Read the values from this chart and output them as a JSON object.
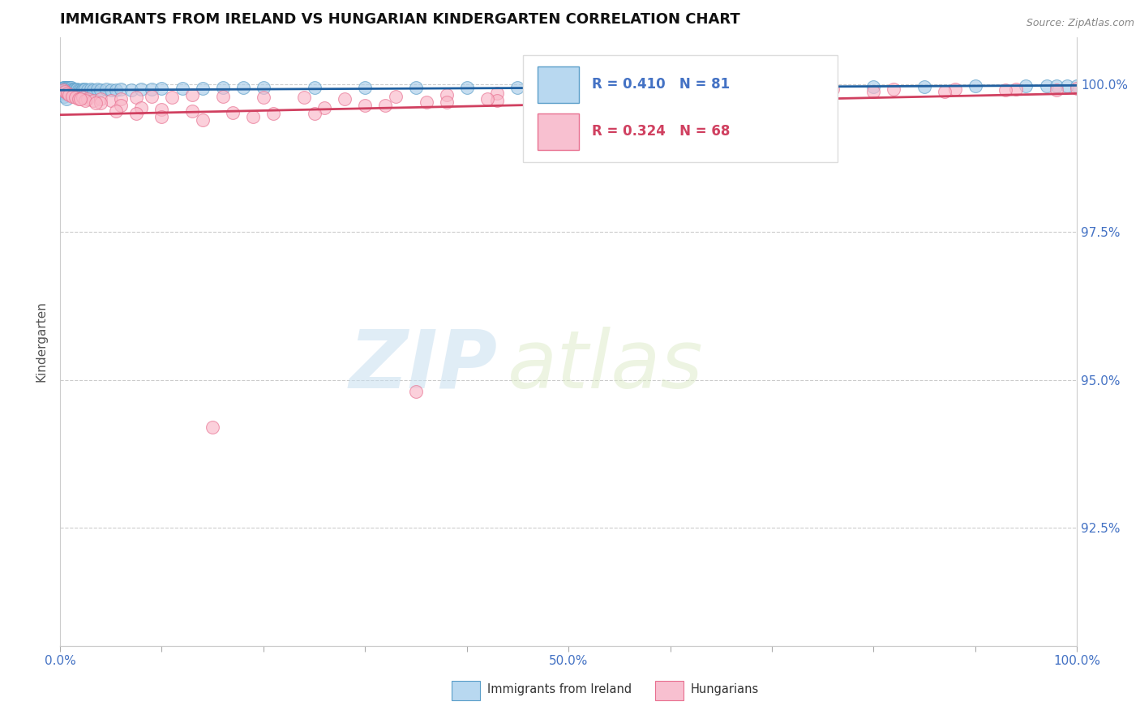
{
  "title": "IMMIGRANTS FROM IRELAND VS HUNGARIAN KINDERGARTEN CORRELATION CHART",
  "source_text": "Source: ZipAtlas.com",
  "ylabel": "Kindergarten",
  "xlim": [
    0.0,
    1.0
  ],
  "ylim": [
    0.905,
    1.008
  ],
  "right_yticks": [
    1.0,
    0.975,
    0.95,
    0.925
  ],
  "right_yticklabels": [
    "100.0%",
    "97.5%",
    "95.0%",
    "92.5%"
  ],
  "series1_name": "Immigrants from Ireland",
  "series1_color": "#a8cce8",
  "series1_edge_color": "#5a9ec9",
  "series1_R": 0.41,
  "series1_N": 81,
  "series2_name": "Hungarians",
  "series2_color": "#f9b8c8",
  "series2_edge_color": "#e87090",
  "series2_R": 0.324,
  "series2_N": 68,
  "trendline1_color": "#2060a0",
  "trendline2_color": "#d04060",
  "watermark_zip": "ZIP",
  "watermark_atlas": "atlas",
  "grid_color": "#cccccc",
  "title_color": "#111111",
  "axis_label_color": "#4472c4",
  "legend_box_color1": "#b8d8f0",
  "legend_box_color2": "#f8c0d0",
  "legend_R1_color": "#4472c4",
  "legend_R2_color": "#d04060",
  "bottom_legend_color": "#333333",
  "source_color": "#888888",
  "ylabel_color": "#555555",
  "series1_x": [
    0.002,
    0.003,
    0.003,
    0.004,
    0.004,
    0.005,
    0.005,
    0.005,
    0.006,
    0.006,
    0.006,
    0.007,
    0.007,
    0.007,
    0.007,
    0.008,
    0.008,
    0.008,
    0.009,
    0.009,
    0.009,
    0.01,
    0.01,
    0.01,
    0.01,
    0.011,
    0.011,
    0.012,
    0.012,
    0.013,
    0.013,
    0.014,
    0.015,
    0.016,
    0.017,
    0.018,
    0.019,
    0.02,
    0.021,
    0.022,
    0.023,
    0.025,
    0.027,
    0.03,
    0.033,
    0.037,
    0.04,
    0.045,
    0.05,
    0.055,
    0.06,
    0.07,
    0.08,
    0.09,
    0.1,
    0.12,
    0.14,
    0.16,
    0.18,
    0.2,
    0.25,
    0.3,
    0.35,
    0.4,
    0.45,
    0.5,
    0.55,
    0.6,
    0.65,
    0.7,
    0.75,
    0.8,
    0.85,
    0.9,
    0.95,
    0.97,
    0.98,
    0.99,
    1.0,
    0.004,
    0.006
  ],
  "series1_y": [
    0.999,
    0.9995,
    0.9985,
    0.999,
    0.9995,
    0.9995,
    0.999,
    0.9985,
    0.9995,
    0.999,
    0.9985,
    0.9995,
    0.999,
    0.9988,
    0.9985,
    0.9995,
    0.9992,
    0.9988,
    0.9995,
    0.999,
    0.9985,
    0.9995,
    0.9992,
    0.9988,
    0.9985,
    0.9995,
    0.999,
    0.9988,
    0.9992,
    0.999,
    0.9985,
    0.9992,
    0.999,
    0.9988,
    0.9992,
    0.999,
    0.9988,
    0.999,
    0.9988,
    0.9992,
    0.999,
    0.9992,
    0.999,
    0.9992,
    0.999,
    0.9992,
    0.999,
    0.9992,
    0.999,
    0.999,
    0.9992,
    0.999,
    0.9992,
    0.9992,
    0.9993,
    0.9993,
    0.9993,
    0.9994,
    0.9994,
    0.9994,
    0.9994,
    0.9994,
    0.9994,
    0.9995,
    0.9995,
    0.9995,
    0.9995,
    0.9995,
    0.9996,
    0.9996,
    0.9996,
    0.9996,
    0.9996,
    0.9997,
    0.9997,
    0.9997,
    0.9997,
    0.9997,
    0.9997,
    0.998,
    0.9975
  ],
  "series2_x": [
    0.003,
    0.005,
    0.007,
    0.009,
    0.012,
    0.015,
    0.018,
    0.022,
    0.027,
    0.033,
    0.04,
    0.05,
    0.06,
    0.075,
    0.09,
    0.11,
    0.13,
    0.16,
    0.2,
    0.24,
    0.28,
    0.33,
    0.38,
    0.43,
    0.48,
    0.53,
    0.58,
    0.64,
    0.7,
    0.76,
    0.82,
    0.88,
    0.94,
    1.0,
    0.025,
    0.04,
    0.06,
    0.08,
    0.1,
    0.13,
    0.17,
    0.21,
    0.26,
    0.32,
    0.38,
    0.43,
    0.02,
    0.035,
    0.055,
    0.075,
    0.1,
    0.14,
    0.19,
    0.25,
    0.3,
    0.36,
    0.42,
    0.48,
    0.54,
    0.6,
    0.66,
    0.73,
    0.8,
    0.87,
    0.93,
    0.98,
    0.15,
    0.35
  ],
  "series2_y": [
    0.999,
    0.9988,
    0.9985,
    0.9982,
    0.998,
    0.9978,
    0.9975,
    0.9978,
    0.9975,
    0.9972,
    0.9975,
    0.9972,
    0.9975,
    0.9978,
    0.998,
    0.9978,
    0.9982,
    0.998,
    0.9978,
    0.9978,
    0.9975,
    0.998,
    0.9982,
    0.9985,
    0.9985,
    0.9988,
    0.9988,
    0.999,
    0.999,
    0.9992,
    0.9992,
    0.9992,
    0.9992,
    0.9993,
    0.9972,
    0.9968,
    0.9965,
    0.996,
    0.9958,
    0.9955,
    0.9952,
    0.995,
    0.996,
    0.9965,
    0.997,
    0.9972,
    0.9975,
    0.9968,
    0.9955,
    0.995,
    0.9945,
    0.994,
    0.9945,
    0.995,
    0.9965,
    0.997,
    0.9975,
    0.998,
    0.998,
    0.9982,
    0.9985,
    0.9985,
    0.9988,
    0.9988,
    0.999,
    0.999,
    0.942,
    0.948
  ]
}
